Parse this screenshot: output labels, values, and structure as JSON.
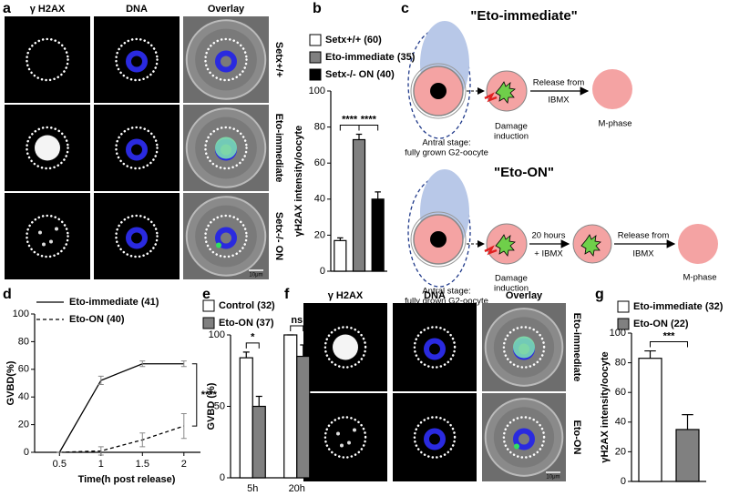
{
  "figure": {
    "panel_a": {
      "label": "a",
      "columns": [
        "γ H2AX",
        "DNA",
        "Overlay"
      ],
      "rows": [
        "Setx+/+",
        "Eto-immediate",
        "Setx-/- ON"
      ],
      "scale_bar": "10μm"
    },
    "panel_c": {
      "label": "c",
      "eto_immediate": {
        "title": "\"Eto-immediate\"",
        "stage": [
          "Antral stage:",
          "fully grown G2-oocyte"
        ],
        "damage": [
          "Damage",
          "induction"
        ],
        "release": [
          "Release from",
          "IBMX"
        ],
        "phase": "M-phase"
      },
      "eto_on": {
        "title": "\"Eto-ON\"",
        "stage": [
          "Antral stage:",
          "fully grown G2-oocyte"
        ],
        "damage": [
          "Damage",
          "induction"
        ],
        "incubation": [
          "20 hours",
          "+ IBMX"
        ],
        "release": [
          "Release from",
          "IBMX"
        ],
        "phase": "M-phase"
      }
    },
    "panel_f": {
      "label": "f",
      "columns": [
        "γ H2AX",
        "DNA",
        "Overlay"
      ],
      "rows": [
        "Eto-immediate",
        "Eto-ON"
      ],
      "scale_bar": "10μm"
    }
  },
  "chart_data": [
    {
      "panel": "b",
      "type": "bar",
      "y_label": "γH2AX intensity/oocyte",
      "series": [
        {
          "name": "Setx+/+ (60)",
          "color": "#ffffff",
          "values": [
            17
          ],
          "errors": [
            1.5
          ]
        },
        {
          "name": "Eto-immediate (35)",
          "color": "#808080",
          "values": [
            73
          ],
          "errors": [
            3
          ]
        },
        {
          "name": "Setx-/- ON (40)",
          "color": "#000000",
          "values": [
            40
          ],
          "errors": [
            4
          ]
        }
      ],
      "ylim": [
        0,
        100
      ],
      "yticks": [
        0,
        20,
        40,
        60,
        80,
        100
      ],
      "significance": [
        "****",
        "****"
      ]
    },
    {
      "panel": "d",
      "type": "line",
      "x_label": "Time(h post release)",
      "y_label": "GVBD(%)",
      "x": [
        0.5,
        1,
        1.5,
        2
      ],
      "series": [
        {
          "name": "Eto-immediate (41)",
          "color": "#000000",
          "dashed": false,
          "values": [
            0,
            52,
            64,
            64
          ],
          "errors": [
            0,
            3,
            2,
            2
          ]
        },
        {
          "name": "Eto-ON (40)",
          "color": "#000000",
          "dashed": true,
          "values": [
            0,
            1,
            9,
            19
          ],
          "errors": [
            0,
            3,
            5,
            9
          ]
        }
      ],
      "xlim": [
        0.2,
        2.2
      ],
      "xticks": [
        0.5,
        1,
        1.5,
        2
      ],
      "ylim": [
        0,
        100
      ],
      "yticks": [
        0,
        20,
        40,
        60,
        80,
        100
      ],
      "significance": [
        "****"
      ]
    },
    {
      "panel": "e",
      "type": "bar",
      "y_label": "GVBD (%)",
      "categories": [
        "5h",
        "20h"
      ],
      "series": [
        {
          "name": "Control (32)",
          "color": "#ffffff",
          "values": [
            84,
            100
          ],
          "errors": [
            4,
            0
          ]
        },
        {
          "name": "Eto-ON (37)",
          "color": "#808080",
          "values": [
            50,
            85
          ],
          "errors": [
            7,
            8
          ]
        }
      ],
      "ylim": [
        0,
        100
      ],
      "yticks": [
        0,
        50,
        100
      ],
      "significance": [
        "*",
        "ns"
      ]
    },
    {
      "panel": "g",
      "type": "bar",
      "y_label": "γH2AX intensity/oocyte",
      "series": [
        {
          "name": "Eto-immediate (32)",
          "color": "#ffffff",
          "values": [
            83
          ],
          "errors": [
            5
          ]
        },
        {
          "name": "Eto-ON (22)",
          "color": "#808080",
          "values": [
            35
          ],
          "errors": [
            10
          ]
        }
      ],
      "ylim": [
        0,
        100
      ],
      "yticks": [
        0,
        20,
        40,
        60,
        80,
        100
      ],
      "significance": [
        "***"
      ]
    }
  ]
}
